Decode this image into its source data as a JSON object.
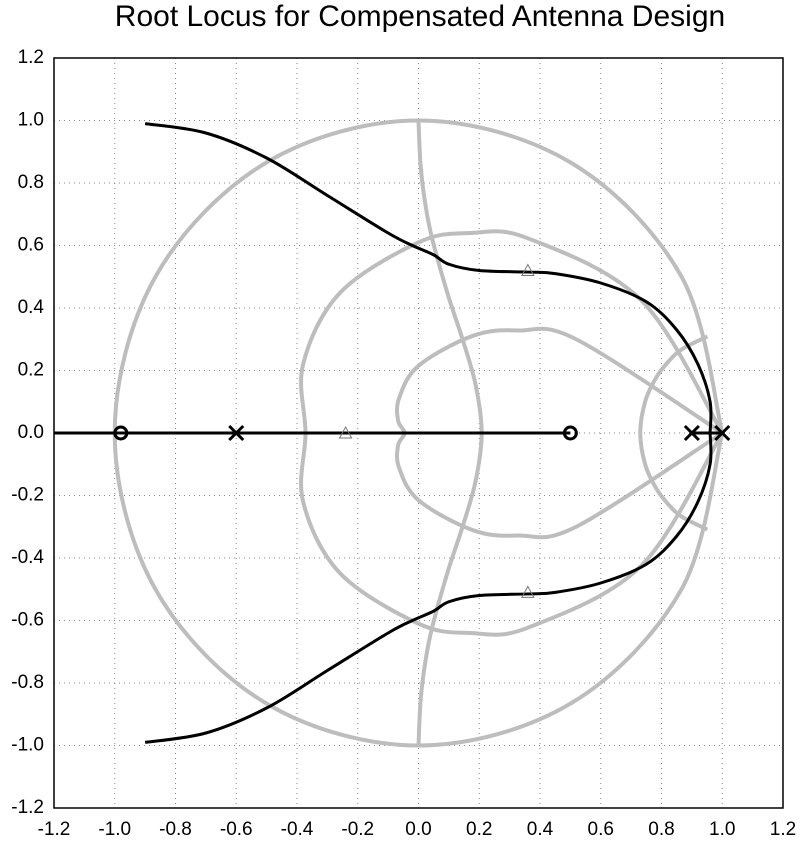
{
  "chart_data": {
    "type": "rootlocus",
    "title": "Root Locus for Compensated Antenna Design",
    "xlim": [
      -1.2,
      1.2
    ],
    "ylim": [
      -1.2,
      1.2
    ],
    "xticks": [
      -1.2,
      {
        "value": -1,
        "label": "-1.0"
      },
      -0.8,
      -0.6,
      -0.4,
      -0.2,
      {
        "value": 0,
        "label": "0.0"
      },
      0.2,
      0.4,
      0.6,
      0.8,
      {
        "value": 1,
        "label": "1.0"
      },
      1.2
    ],
    "yticks": [
      -1.2,
      {
        "value": -1,
        "label": "-1.0"
      },
      -0.8,
      -0.6,
      -0.4,
      -0.2,
      {
        "value": 0,
        "label": "0.0"
      },
      0.2,
      0.4,
      0.6,
      0.8,
      {
        "value": 1,
        "label": "1.0"
      },
      1.2
    ],
    "grid": true,
    "series": [
      {
        "color": "#bdbdbd",
        "x": [
          1,
          0.866,
          0.5,
          0,
          -0.5,
          -0.866,
          -1,
          -0.866,
          -0.5,
          0,
          0.5,
          0.866,
          1
        ],
        "y": [
          0,
          0.5,
          0.866,
          1,
          0.866,
          0.5,
          0,
          -0.5,
          -0.866,
          -1,
          -0.866,
          -0.5,
          0
        ]
      },
      {
        "color": "#bdbdbd",
        "x": [
          1,
          0.734,
          0.36,
          0.171,
          0,
          -0.259,
          -0.38,
          -0.372,
          -0.38,
          -0.259,
          0,
          0.171,
          0.36,
          0.734,
          1
        ],
        "y": [
          0,
          0.424,
          0.623,
          0.64,
          0.61,
          0.448,
          0.219,
          0,
          -0.219,
          -0.448,
          -0.61,
          -0.64,
          -0.623,
          -0.424,
          0
        ]
      },
      {
        "color": "#bdbdbd",
        "x": [
          1,
          0.519,
          0.328,
          0.179,
          0,
          -0.064,
          -0.067,
          -0.046,
          -0.067,
          -0.064,
          0,
          0.179,
          0.328,
          0.519,
          1
        ],
        "y": [
          0,
          0.3,
          0.328,
          0.311,
          0.215,
          0.111,
          0.039,
          0,
          -0.039,
          -0.111,
          -0.215,
          -0.311,
          -0.328,
          -0.3,
          0
        ]
      },
      {
        "color": "#bdbdbd",
        "x": [
          0,
          0.007,
          0.023,
          0.045,
          0.096,
          0.145,
          0.188,
          0.208,
          0.188,
          0.145,
          0.096,
          0.045,
          0.023,
          0.007,
          0
        ],
        "y": [
          1,
          0.855,
          0.729,
          0.622,
          0.445,
          0.3,
          0.154,
          0,
          -0.154,
          -0.3,
          -0.445,
          -0.622,
          -0.729,
          -0.855,
          -1
        ]
      },
      {
        "color": "#bdbdbd",
        "x": [
          0.951,
          0.869,
          0.824,
          0.783,
          0.747,
          0.73,
          0.747,
          0.783,
          0.824,
          0.869,
          0.951
        ],
        "y": [
          0.309,
          0.269,
          0.23,
          0.178,
          0.103,
          0,
          -0.103,
          -0.178,
          -0.23,
          -0.269,
          -0.309
        ]
      },
      {
        "color": "#000000",
        "x": [
          0.96,
          0.96,
          0.92,
          0.85,
          0.75,
          0.6,
          0.45,
          0.36,
          0.2,
          0.1,
          0.05,
          -0.02,
          -0.1,
          -0.3,
          -0.5,
          -0.7,
          -0.9
        ],
        "y": [
          0,
          0.1,
          0.22,
          0.33,
          0.42,
          0.48,
          0.51,
          0.515,
          0.52,
          0.54,
          0.57,
          0.6,
          0.64,
          0.76,
          0.88,
          0.96,
          0.99
        ]
      },
      {
        "color": "#000000",
        "x": [
          0.96,
          0.96,
          0.92,
          0.85,
          0.75,
          0.6,
          0.45,
          0.36,
          0.2,
          0.1,
          0.05,
          -0.02,
          -0.1,
          -0.3,
          -0.5,
          -0.7,
          -0.9
        ],
        "y": [
          0,
          -0.1,
          -0.22,
          -0.33,
          -0.42,
          -0.48,
          -0.51,
          -0.515,
          -0.52,
          -0.54,
          -0.57,
          -0.6,
          -0.64,
          -0.76,
          -0.88,
          -0.96,
          -0.99
        ]
      },
      {
        "color": "#000000",
        "x": [
          -1.2,
          0.5
        ],
        "y": [
          0,
          0
        ]
      },
      {
        "color": "#000000",
        "x": [
          0.9,
          1
        ],
        "y": [
          0,
          0
        ]
      }
    ],
    "poles": {
      "x": [
        -0.6,
        0.9,
        1
      ],
      "y": [
        0,
        0,
        0
      ]
    },
    "zeros": {
      "x": [
        -0.98,
        0.5
      ],
      "y": [
        0,
        0
      ]
    },
    "closed_loop_poles": {
      "x": [
        0.36,
        0.36,
        -0.24
      ],
      "y": [
        0.52,
        -0.51,
        0
      ]
    }
  }
}
